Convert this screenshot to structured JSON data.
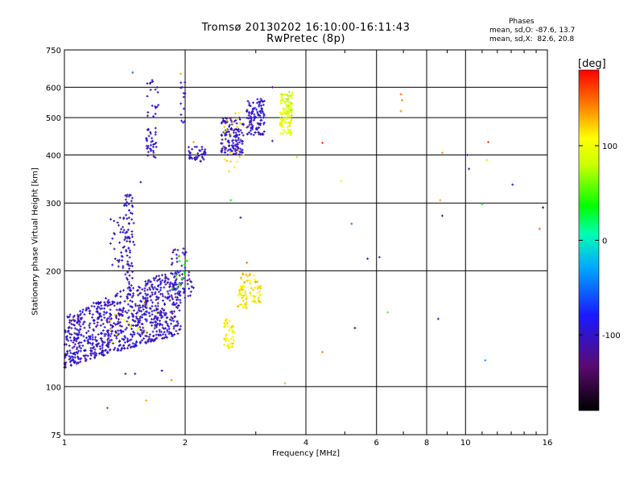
{
  "chart_data": {
    "type": "scatter",
    "title": "Tromsø 20130202 16:10:00-16:11:43",
    "subtitle": "RwPretec (8p)",
    "xlabel": "Frequency [MHz]",
    "ylabel": "Stationary phase Virtual Height [km]",
    "x_scale": "log",
    "y_scale": "log",
    "xlim": [
      1,
      16
    ],
    "ylim": [
      75,
      750
    ],
    "x_ticks": [
      1,
      2,
      4,
      6,
      8,
      10,
      16
    ],
    "y_ticks": [
      75,
      100,
      200,
      300,
      400,
      500,
      600,
      750
    ],
    "grid": true,
    "phases_title": "Phases",
    "phases_o": "mean, sd,O: -87.6, 13.7",
    "phases_x": "mean, sd,X:  82.6, 20.8",
    "colorbar": {
      "label": "[deg]",
      "range": [
        -180,
        180
      ],
      "ticks": [
        100,
        0,
        -100
      ]
    },
    "series": [
      {
        "clusters": [
          {
            "x": [
              1.0,
              1.95
            ],
            "y": [
              112,
              185
            ],
            "phase": -100,
            "count": 900,
            "shape": "ramp"
          },
          {
            "x": [
              1.4,
              1.48
            ],
            "y": [
              180,
              320
            ],
            "phase": -100,
            "count": 60
          },
          {
            "x": [
              1.3,
              1.5
            ],
            "y": [
              200,
              280
            ],
            "phase": -100,
            "count": 50
          },
          {
            "x": [
              1.85,
              2.1
            ],
            "y": [
              170,
              230
            ],
            "phase": -100,
            "count": 60
          },
          {
            "x": [
              1.6,
              1.7
            ],
            "y": [
              390,
              470
            ],
            "phase": -100,
            "count": 35
          },
          {
            "x": [
              1.6,
              1.72
            ],
            "y": [
              500,
              640
            ],
            "phase": -100,
            "count": 18
          },
          {
            "x": [
              2.02,
              2.25
            ],
            "y": [
              385,
              420
            ],
            "phase": -100,
            "count": 40
          },
          {
            "x": [
              2.45,
              2.8
            ],
            "y": [
              400,
              500
            ],
            "phase": -100,
            "count": 130
          },
          {
            "x": [
              2.85,
              3.15
            ],
            "y": [
              450,
              560
            ],
            "phase": -100,
            "count": 110
          },
          {
            "x": [
              1.95,
              2.0
            ],
            "y": [
              480,
              620
            ],
            "phase": -100,
            "count": 14
          },
          {
            "x": [
              1.3,
              1.75
            ],
            "y": [
              130,
              170
            ],
            "phase": 110,
            "count": 20
          },
          {
            "x": [
              1.85,
              2.05
            ],
            "y": [
              180,
              220
            ],
            "phase": 50,
            "count": 14
          },
          {
            "x": [
              2.5,
              2.65
            ],
            "y": [
              125,
              150
            ],
            "phase": 110,
            "count": 45
          },
          {
            "x": [
              2.7,
              2.85
            ],
            "y": [
              160,
              185
            ],
            "phase": 110,
            "count": 40
          },
          {
            "x": [
              2.9,
              3.1
            ],
            "y": [
              165,
              190
            ],
            "phase": 110,
            "count": 35
          },
          {
            "x": [
              2.75,
              3.0
            ],
            "y": [
              185,
              200
            ],
            "phase": 120,
            "count": 15
          },
          {
            "x": [
              3.45,
              3.7
            ],
            "y": [
              450,
              580
            ],
            "phase": 90,
            "count": 90
          },
          {
            "x": [
              3.6,
              3.7
            ],
            "y": [
              500,
              590
            ],
            "phase": 80,
            "count": 20
          },
          {
            "x": [
              2.5,
              2.8
            ],
            "y": [
              360,
              420
            ],
            "phase": 120,
            "count": 10
          },
          {
            "x": [
              2.5,
              2.75
            ],
            "y": [
              450,
              520
            ],
            "phase": 110,
            "count": 12
          }
        ],
        "points": [
          {
            "x": 1.28,
            "y": 88,
            "phase": 170
          },
          {
            "x": 1.6,
            "y": 92,
            "phase": 130
          },
          {
            "x": 1.85,
            "y": 104,
            "phase": 140
          },
          {
            "x": 3.55,
            "y": 102,
            "phase": 130
          },
          {
            "x": 4.4,
            "y": 123,
            "phase": 140
          },
          {
            "x": 5.3,
            "y": 142,
            "phase": -110
          },
          {
            "x": 6.4,
            "y": 156,
            "phase": 50
          },
          {
            "x": 8.55,
            "y": 150,
            "phase": -110
          },
          {
            "x": 11.2,
            "y": 117,
            "phase": -30
          },
          {
            "x": 5.2,
            "y": 265,
            "phase": -40
          },
          {
            "x": 5.7,
            "y": 215,
            "phase": -110
          },
          {
            "x": 6.1,
            "y": 217,
            "phase": -70
          },
          {
            "x": 4.9,
            "y": 342,
            "phase": 110
          },
          {
            "x": 4.4,
            "y": 430,
            "phase": 160
          },
          {
            "x": 3.8,
            "y": 395,
            "phase": 70
          },
          {
            "x": 6.9,
            "y": 575,
            "phase": 150
          },
          {
            "x": 6.95,
            "y": 555,
            "phase": 140
          },
          {
            "x": 6.9,
            "y": 520,
            "phase": 140
          },
          {
            "x": 8.65,
            "y": 305,
            "phase": 130
          },
          {
            "x": 8.75,
            "y": 278,
            "phase": -110
          },
          {
            "x": 8.75,
            "y": 405,
            "phase": 140
          },
          {
            "x": 10.1,
            "y": 400,
            "phase": -100
          },
          {
            "x": 10.2,
            "y": 368,
            "phase": -90
          },
          {
            "x": 11.0,
            "y": 298,
            "phase": 40
          },
          {
            "x": 11.3,
            "y": 388,
            "phase": 80
          },
          {
            "x": 11.4,
            "y": 432,
            "phase": 160
          },
          {
            "x": 13.1,
            "y": 335,
            "phase": -90
          },
          {
            "x": 15.6,
            "y": 292,
            "phase": -150
          },
          {
            "x": 15.3,
            "y": 257,
            "phase": 150
          },
          {
            "x": 1.48,
            "y": 655,
            "phase": -50
          },
          {
            "x": 1.66,
            "y": 620,
            "phase": -110
          },
          {
            "x": 1.95,
            "y": 650,
            "phase": 130
          },
          {
            "x": 2.6,
            "y": 305,
            "phase": 40
          },
          {
            "x": 2.75,
            "y": 275,
            "phase": -110
          },
          {
            "x": 2.85,
            "y": 210,
            "phase": 150
          },
          {
            "x": 1.55,
            "y": 340,
            "phase": -100
          },
          {
            "x": 1.5,
            "y": 108,
            "phase": -110
          },
          {
            "x": 1.42,
            "y": 108,
            "phase": -100
          },
          {
            "x": 1.75,
            "y": 110,
            "phase": -100
          },
          {
            "x": 3.3,
            "y": 435,
            "phase": -110
          },
          {
            "x": 2.6,
            "y": 385,
            "phase": 120
          },
          {
            "x": 3.3,
            "y": 600,
            "phase": -130
          },
          {
            "x": 2.1,
            "y": 432,
            "phase": 130
          }
        ]
      }
    ]
  }
}
